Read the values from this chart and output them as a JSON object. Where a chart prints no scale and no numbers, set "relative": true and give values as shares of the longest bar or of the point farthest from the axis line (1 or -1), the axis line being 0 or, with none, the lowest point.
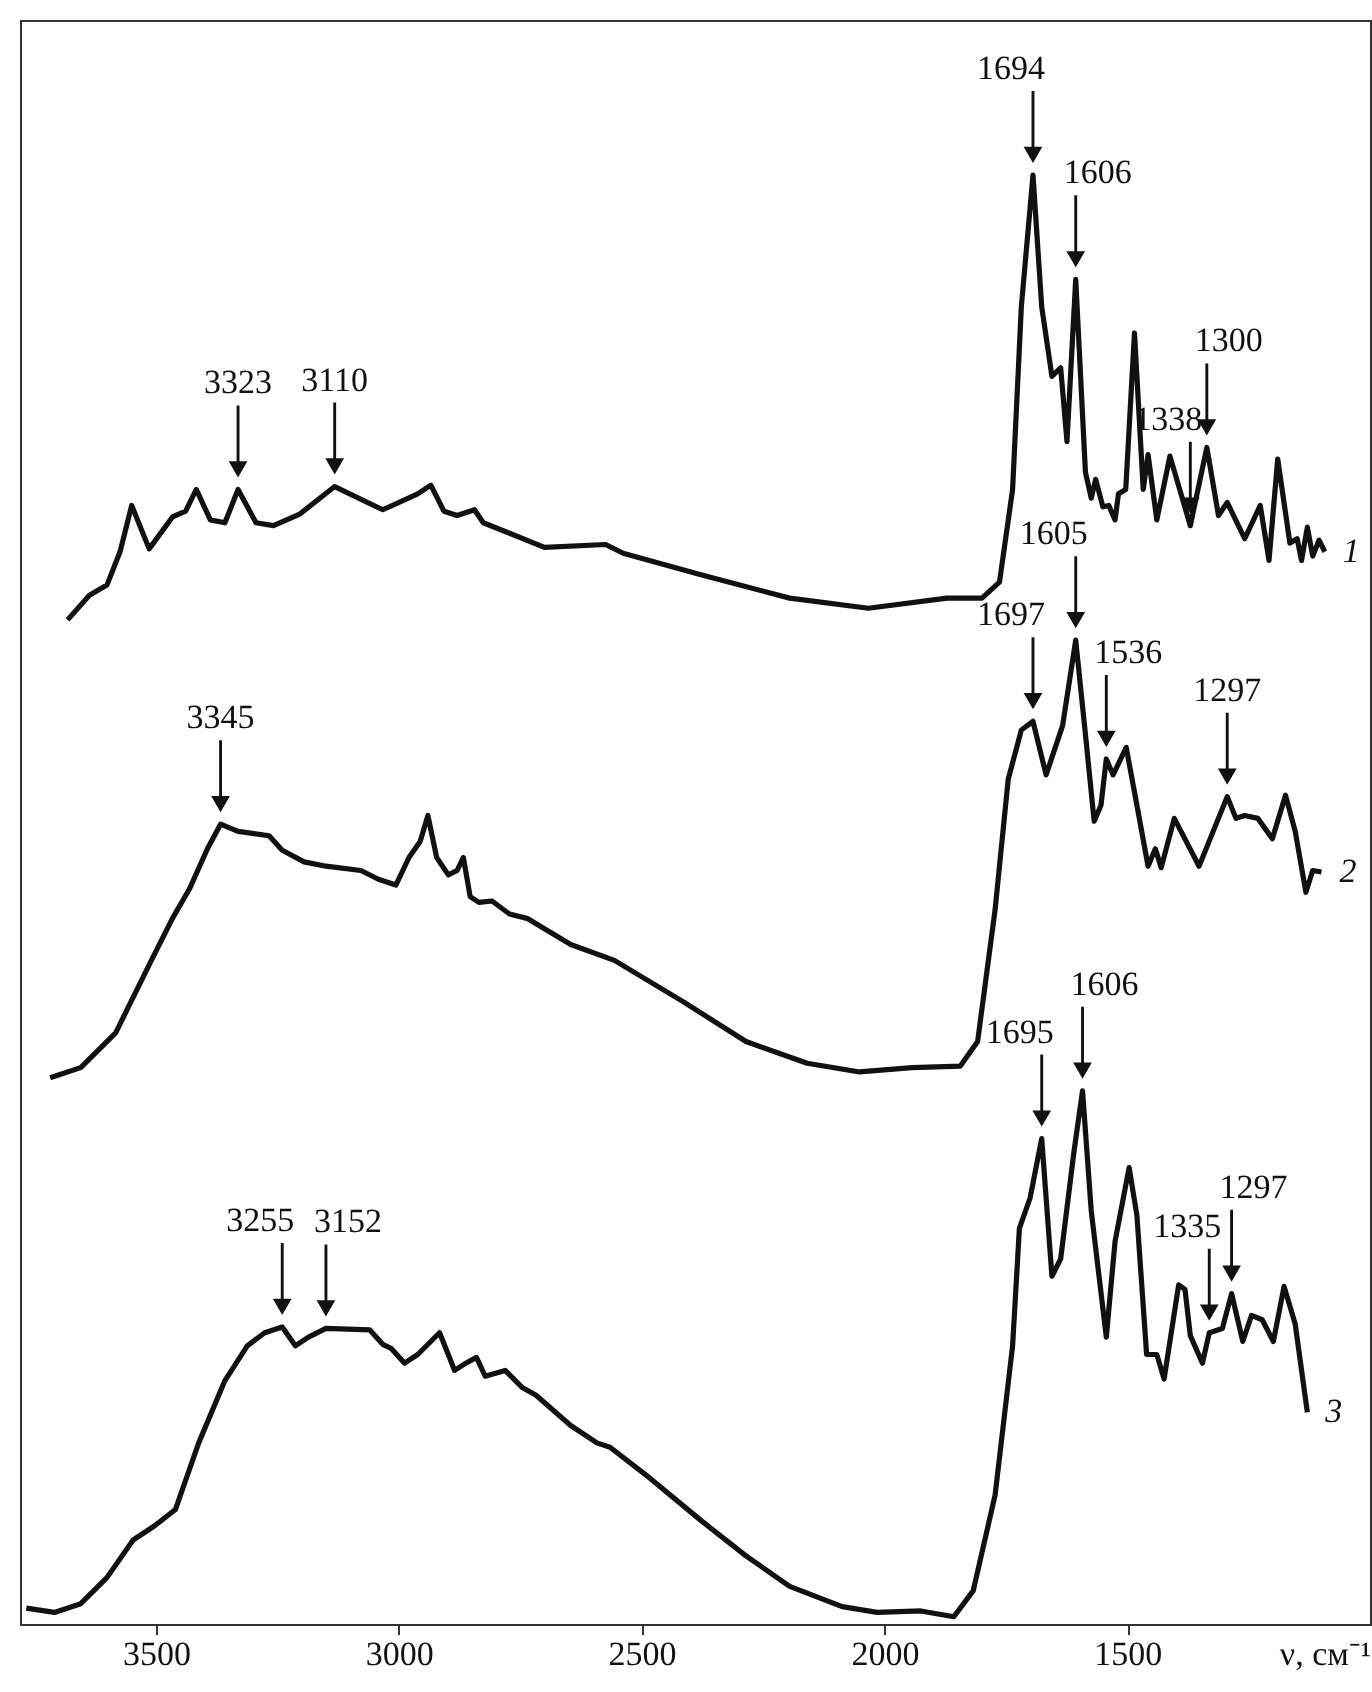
{
  "chart_data": {
    "type": "line",
    "relative": true,
    "line_style": "solid",
    "xlabel": "ν, см⁻¹",
    "xlim": [
      3780,
      1000
    ],
    "xticks": [
      3500,
      3000,
      2500,
      2000,
      1500
    ],
    "series": [
      {
        "name": "1",
        "color": "#111111",
        "x": [
          3682,
          3637,
          3601,
          3574,
          3550,
          3514,
          3466,
          3439,
          3417,
          3388,
          3358,
          3331,
          3294,
          3258,
          3204,
          3132,
          3033,
          2961,
          2934,
          2907,
          2880,
          2844,
          2826,
          2781,
          2700,
          2574,
          2538,
          2376,
          2195,
          2033,
          1871,
          1799,
          1763,
          1736,
          1718,
          1694,
          1676,
          1655,
          1637,
          1624,
          1606,
          1586,
          1574,
          1565,
          1550,
          1538,
          1525,
          1518,
          1503,
          1485,
          1467,
          1457,
          1439,
          1412,
          1370,
          1336,
          1312,
          1294,
          1258,
          1226,
          1208,
          1190,
          1165,
          1150,
          1141,
          1129,
          1118,
          1105,
          1093
        ],
        "values": [
          0.693,
          0.71,
          0.717,
          0.74,
          0.772,
          0.742,
          0.764,
          0.768,
          0.783,
          0.762,
          0.76,
          0.783,
          0.76,
          0.758,
          0.766,
          0.785,
          0.769,
          0.78,
          0.786,
          0.768,
          0.765,
          0.769,
          0.76,
          0.754,
          0.743,
          0.745,
          0.739,
          0.724,
          0.708,
          0.701,
          0.708,
          0.708,
          0.719,
          0.783,
          0.909,
          1.0,
          0.909,
          0.861,
          0.867,
          0.816,
          0.928,
          0.795,
          0.777,
          0.79,
          0.771,
          0.772,
          0.762,
          0.78,
          0.783,
          0.891,
          0.783,
          0.807,
          0.762,
          0.806,
          0.758,
          0.812,
          0.765,
          0.774,
          0.749,
          0.772,
          0.734,
          0.804,
          0.746,
          0.749,
          0.734,
          0.757,
          0.737,
          0.748,
          0.74
        ]
      },
      {
        "name": "2",
        "color": "#111111",
        "x": [
          3718,
          3655,
          3583,
          3511,
          3466,
          3430,
          3394,
          3367,
          3331,
          3267,
          3240,
          3195,
          3150,
          3078,
          3042,
          3006,
          2979,
          2956,
          2940,
          2922,
          2898,
          2880,
          2867,
          2853,
          2835,
          2808,
          2772,
          2736,
          2646,
          2556,
          2412,
          2285,
          2159,
          2051,
          1943,
          1844,
          1808,
          1772,
          1745,
          1718,
          1694,
          1667,
          1633,
          1606,
          1586,
          1568,
          1554,
          1543,
          1529,
          1502,
          1480,
          1457,
          1442,
          1430,
          1403,
          1352,
          1294,
          1276,
          1258,
          1231,
          1201,
          1174,
          1154,
          1132,
          1118,
          1100
        ],
        "values": [
          0.377,
          0.384,
          0.408,
          0.457,
          0.487,
          0.508,
          0.535,
          0.552,
          0.547,
          0.544,
          0.534,
          0.526,
          0.523,
          0.52,
          0.514,
          0.51,
          0.529,
          0.54,
          0.558,
          0.529,
          0.517,
          0.52,
          0.529,
          0.502,
          0.498,
          0.499,
          0.49,
          0.487,
          0.469,
          0.458,
          0.429,
          0.402,
          0.387,
          0.381,
          0.384,
          0.385,
          0.402,
          0.493,
          0.583,
          0.617,
          0.623,
          0.586,
          0.62,
          0.679,
          0.614,
          0.554,
          0.565,
          0.597,
          0.586,
          0.605,
          0.565,
          0.523,
          0.535,
          0.522,
          0.556,
          0.523,
          0.571,
          0.556,
          0.558,
          0.556,
          0.542,
          0.572,
          0.547,
          0.505,
          0.52,
          0.519
        ]
      },
      {
        "name": "3",
        "color": "#111111",
        "x": [
          3767,
          3709,
          3655,
          3601,
          3547,
          3502,
          3460,
          3412,
          3358,
          3312,
          3276,
          3240,
          3213,
          3186,
          3150,
          3060,
          3033,
          3015,
          2988,
          2961,
          2916,
          2885,
          2862,
          2840,
          2822,
          2781,
          2745,
          2718,
          2646,
          2592,
          2565,
          2484,
          2376,
          2285,
          2195,
          2087,
          2015,
          1925,
          1857,
          1817,
          1772,
          1736,
          1722,
          1700,
          1676,
          1655,
          1637,
          1610,
          1592,
          1574,
          1543,
          1525,
          1496,
          1480,
          1460,
          1439,
          1424,
          1394,
          1381,
          1370,
          1345,
          1331,
          1304,
          1285,
          1262,
          1244,
          1222,
          1199,
          1177,
          1154,
          1129
        ],
        "values": [
          0.011,
          0.008,
          0.014,
          0.032,
          0.058,
          0.068,
          0.079,
          0.125,
          0.168,
          0.192,
          0.201,
          0.205,
          0.192,
          0.198,
          0.204,
          0.203,
          0.193,
          0.19,
          0.18,
          0.186,
          0.201,
          0.175,
          0.18,
          0.184,
          0.171,
          0.175,
          0.163,
          0.158,
          0.137,
          0.125,
          0.122,
          0.101,
          0.071,
          0.047,
          0.026,
          0.012,
          0.008,
          0.009,
          0.005,
          0.023,
          0.089,
          0.192,
          0.273,
          0.294,
          0.335,
          0.24,
          0.252,
          0.325,
          0.368,
          0.285,
          0.198,
          0.264,
          0.315,
          0.282,
          0.186,
          0.186,
          0.169,
          0.234,
          0.231,
          0.199,
          0.18,
          0.201,
          0.204,
          0.228,
          0.195,
          0.213,
          0.21,
          0.195,
          0.233,
          0.207,
          0.146
        ]
      }
    ],
    "annotations": [
      {
        "text": "3323",
        "x": 3331,
        "y": 0.783
      },
      {
        "text": "3110",
        "x": 3132,
        "y": 0.785
      },
      {
        "text": "1694",
        "x": 1694,
        "y": 1.0
      },
      {
        "text": "1606",
        "x": 1606,
        "y": 0.928
      },
      {
        "text": "1338",
        "x": 1370,
        "y": 0.758
      },
      {
        "text": "1300",
        "x": 1336,
        "y": 0.812
      },
      {
        "text": "3345",
        "x": 3367,
        "y": 0.552
      },
      {
        "text": "1697",
        "x": 1694,
        "y": 0.623
      },
      {
        "text": "1605",
        "x": 1606,
        "y": 0.679
      },
      {
        "text": "1536",
        "x": 1543,
        "y": 0.597
      },
      {
        "text": "1297",
        "x": 1294,
        "y": 0.571
      },
      {
        "text": "3255",
        "x": 3240,
        "y": 0.205
      },
      {
        "text": "3152",
        "x": 3150,
        "y": 0.204
      },
      {
        "text": "1695",
        "x": 1676,
        "y": 0.335
      },
      {
        "text": "1606",
        "x": 1592,
        "y": 0.368
      },
      {
        "text": "1335",
        "x": 1331,
        "y": 0.201
      },
      {
        "text": "1297",
        "x": 1285,
        "y": 0.228
      }
    ]
  }
}
